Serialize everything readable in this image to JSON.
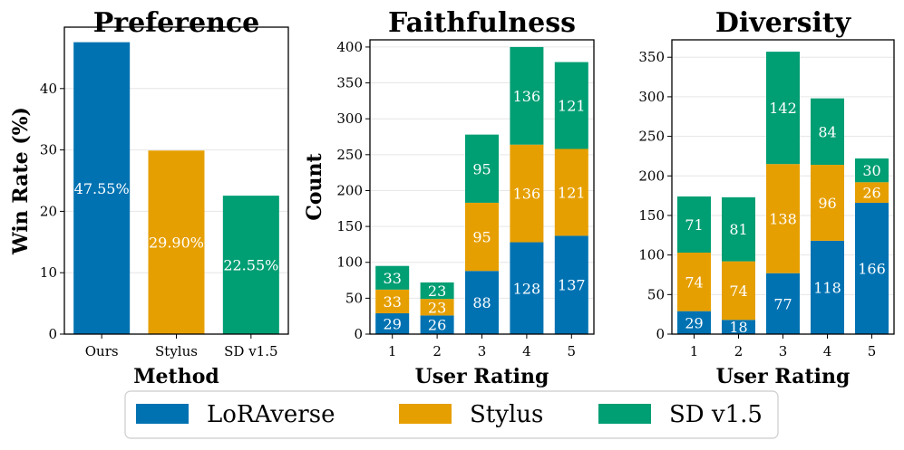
{
  "colors": {
    "loraverse": "#0072B2",
    "stylus": "#E69F00",
    "sd": "#009E73"
  },
  "legend": [
    {
      "label": "LoRAverse",
      "color": "#0072B2"
    },
    {
      "label": "Stylus",
      "color": "#E69F00"
    },
    {
      "label": "SD v1.5",
      "color": "#009E73"
    }
  ],
  "chart_data": [
    {
      "type": "bar",
      "title": "Preference",
      "xlabel": "Method",
      "ylabel": "Win Rate (%)",
      "ylim": [
        0,
        50
      ],
      "yticks": [
        0,
        10,
        20,
        30,
        40
      ],
      "categories": [
        "Ours",
        "Stylus",
        "SD v1.5"
      ],
      "values": [
        47.55,
        29.9,
        22.55
      ],
      "labels": [
        "47.55%",
        "29.90%",
        "22.55%"
      ],
      "colors": [
        "#0072B2",
        "#E69F00",
        "#009E73"
      ]
    },
    {
      "type": "bar",
      "stacked": true,
      "title": "Faithfulness",
      "xlabel": "User Rating",
      "ylabel": "Count",
      "ylim": [
        0,
        410
      ],
      "yticks": [
        0,
        50,
        100,
        150,
        200,
        250,
        300,
        350,
        400
      ],
      "categories": [
        "1",
        "2",
        "3",
        "4",
        "5"
      ],
      "series": [
        {
          "name": "LoRAverse",
          "values": [
            29,
            26,
            88,
            128,
            137
          ]
        },
        {
          "name": "Stylus",
          "values": [
            33,
            23,
            95,
            136,
            121
          ]
        },
        {
          "name": "SD v1.5",
          "values": [
            33,
            23,
            95,
            136,
            121
          ]
        }
      ]
    },
    {
      "type": "bar",
      "stacked": true,
      "title": "Diversity",
      "xlabel": "User Rating",
      "ylabel": "",
      "ylim": [
        0,
        372
      ],
      "yticks": [
        0,
        50,
        100,
        150,
        200,
        250,
        300,
        350
      ],
      "categories": [
        "1",
        "2",
        "3",
        "4",
        "5"
      ],
      "series": [
        {
          "name": "LoRAverse",
          "values": [
            29,
            18,
            77,
            118,
            166
          ]
        },
        {
          "name": "Stylus",
          "values": [
            74,
            74,
            138,
            96,
            26
          ]
        },
        {
          "name": "SD v1.5",
          "values": [
            71,
            81,
            142,
            84,
            30
          ]
        }
      ]
    }
  ]
}
